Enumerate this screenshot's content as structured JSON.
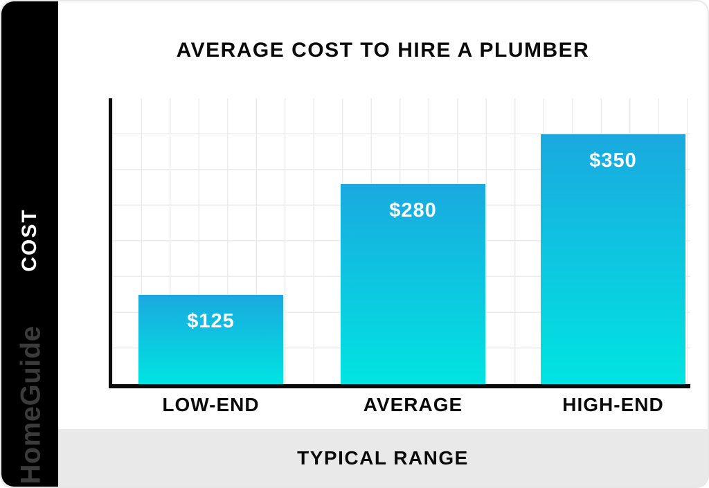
{
  "sidebar": {
    "axis_label": "COST",
    "brand": "HomeGuide",
    "background": "#000000",
    "axis_label_color": "#ffffff",
    "brand_color": "#3b3b3b"
  },
  "header": {
    "title": "AVERAGE COST TO HIRE A PLUMBER"
  },
  "footer": {
    "label": "TYPICAL RANGE",
    "background": "#e9e9e9"
  },
  "chart_data": {
    "type": "bar",
    "title": "AVERAGE COST TO HIRE A PLUMBER",
    "categories": [
      "LOW-END",
      "AVERAGE",
      "HIGH-END"
    ],
    "values": [
      125,
      280,
      350
    ],
    "value_labels": [
      "$125",
      "$280",
      "$350"
    ],
    "xlabel": "TYPICAL RANGE",
    "ylabel": "COST",
    "ylim": [
      0,
      400
    ],
    "grid": true,
    "legend": "none",
    "bar_gradient_top": "#1aa9df",
    "bar_gradient_bottom": "#00e4e1",
    "axis_color": "#0b0b0b",
    "gridline_color": "#ececec"
  }
}
